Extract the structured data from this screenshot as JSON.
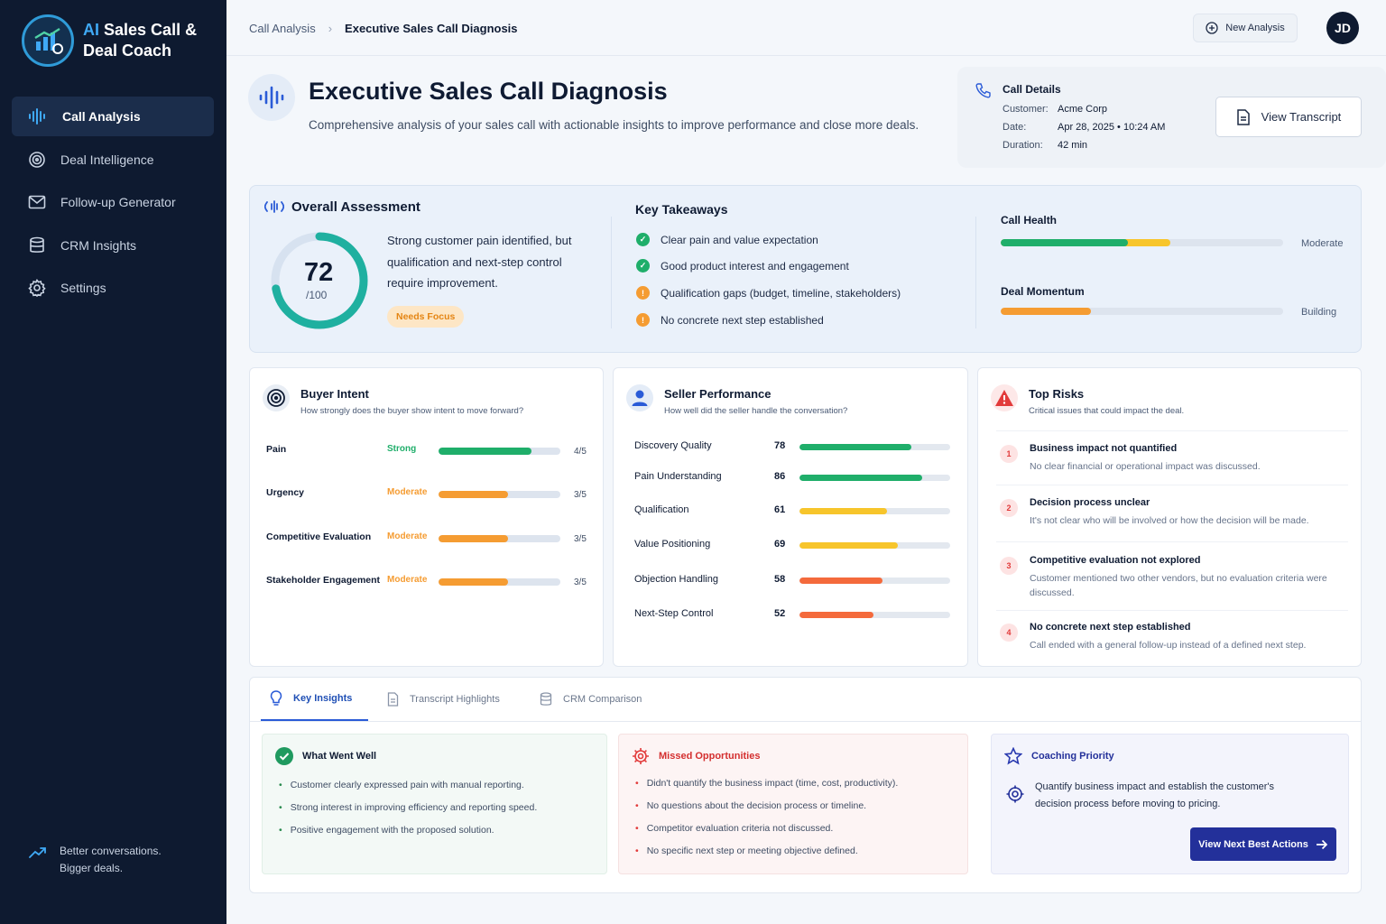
{
  "app": {
    "title_part1": "AI",
    "title_part2": "Sales Call &",
    "title_line2": "Deal Coach"
  },
  "sidebar": {
    "items": [
      {
        "label": "Call Analysis",
        "icon": "waveform-icon",
        "active": true
      },
      {
        "label": "Deal Intelligence",
        "icon": "target-icon"
      },
      {
        "label": "Follow-up Generator",
        "icon": "mail-icon"
      },
      {
        "label": "CRM Insights",
        "icon": "database-icon"
      },
      {
        "label": "Settings",
        "icon": "gear-icon"
      }
    ],
    "tagline_line1": "Better conversations.",
    "tagline_line2": "Bigger deals."
  },
  "header": {
    "breadcrumb": [
      "Call Analysis",
      "Executive Sales Call Diagnosis"
    ],
    "new_analysis_label": "New Analysis",
    "avatar_initials": "JD"
  },
  "page": {
    "title": "Executive Sales Call Diagnosis",
    "subtitle": "Comprehensive analysis of your sales call with actionable insights to improve performance and close more deals."
  },
  "call_details": {
    "title": "Call Details",
    "customer_label": "Customer:",
    "customer": "Acme Corp",
    "date_label": "Date:",
    "date": "Apr 28, 2025 • 10:24 AM",
    "duration_label": "Duration:",
    "duration": "42 min",
    "view_transcript_label": "View Transcript"
  },
  "overall": {
    "title": "Overall Assessment",
    "score": "72",
    "score_value": 72,
    "score_max": "/100",
    "summary": "Strong customer pain identified, but qualification and next-step control require improvement.",
    "badge": "Needs Focus",
    "takeaways_title": "Key Takeaways",
    "takeaways": [
      {
        "text": "Clear pain and value expectation",
        "status": "positive"
      },
      {
        "text": "Good product interest and engagement",
        "status": "positive"
      },
      {
        "text": "Qualification gaps (budget, timeline, stakeholders)",
        "status": "warning"
      },
      {
        "text": "No concrete next step established",
        "status": "warning"
      }
    ],
    "call_health": {
      "label": "Call Health",
      "value": "Moderate",
      "green_fraction": 0.45,
      "yellow_fraction": 0.15
    },
    "deal_momentum": {
      "label": "Deal Momentum",
      "value": "Building",
      "fraction": 0.32
    }
  },
  "buyer_intent": {
    "title": "Buyer Intent",
    "subtitle": "How strongly does the buyer show intent to move forward?",
    "rows": [
      {
        "label": "Pain",
        "level": "Strong",
        "score": "4/5",
        "value": 4,
        "color": "#1fae6a"
      },
      {
        "label": "Urgency",
        "level": "Moderate",
        "score": "3/5",
        "value": 3,
        "color": "#f59c32"
      },
      {
        "label": "Competitive Evaluation",
        "level": "Moderate",
        "score": "3/5",
        "value": 3,
        "color": "#f59c32"
      },
      {
        "label": "Stakeholder Engagement",
        "level": "Moderate",
        "score": "3/5",
        "value": 3,
        "color": "#f59c32"
      }
    ]
  },
  "seller_performance": {
    "title": "Seller Performance",
    "subtitle": "How well did the seller handle the conversation?",
    "rows": [
      {
        "label": "Discovery Quality",
        "score": "78",
        "value": 78,
        "color": "#1fae6a"
      },
      {
        "label": "Pain Understanding",
        "score": "86",
        "value": 86,
        "color": "#1fae6a"
      },
      {
        "label": "Qualification",
        "score": "61",
        "value": 61,
        "color": "#f7c52b"
      },
      {
        "label": "Value Positioning",
        "score": "69",
        "value": 69,
        "color": "#f7c52b"
      },
      {
        "label": "Objection Handling",
        "score": "58",
        "value": 58,
        "color": "#f46a3c"
      },
      {
        "label": "Next-Step Control",
        "score": "52",
        "value": 52,
        "color": "#f46a3c"
      }
    ]
  },
  "top_risks": {
    "title": "Top Risks",
    "subtitle": "Critical issues that could impact the deal.",
    "items": [
      {
        "n": "1",
        "title": "Business impact not quantified",
        "desc": "No clear financial or operational impact was discussed."
      },
      {
        "n": "2",
        "title": "Decision process unclear",
        "desc": "It's not clear who will be involved or how the decision will be made."
      },
      {
        "n": "3",
        "title": "Competitive evaluation not explored",
        "desc": "Customer mentioned two other vendors, but no evaluation criteria were discussed."
      },
      {
        "n": "4",
        "title": "No concrete next step established",
        "desc": "Call ended with a general follow-up instead of a defined next step."
      }
    ]
  },
  "tabs": [
    {
      "label": "Key Insights",
      "active": true
    },
    {
      "label": "Transcript Highlights"
    },
    {
      "label": "CRM Comparison"
    }
  ],
  "insights": {
    "went_well": {
      "title": "What Went Well",
      "items": [
        "Customer clearly expressed pain with manual reporting.",
        "Strong interest in improving efficiency and reporting speed.",
        "Positive engagement with the proposed solution."
      ]
    },
    "missed": {
      "title": "Missed Opportunities",
      "items": [
        "Didn't quantify the business impact (time, cost, productivity).",
        "No questions about the decision process or timeline.",
        "Competitor evaluation criteria not discussed.",
        "No specific next step or meeting objective defined."
      ]
    },
    "coaching": {
      "title": "Coaching Priority",
      "text": "Quantify business impact and establish the customer's decision process before moving to pricing.",
      "button": "View Next Best Actions"
    }
  },
  "colors": {
    "sidebar": "#0e1a30",
    "accent": "#2a5bd7",
    "green": "#1fae6a",
    "orange": "#f59c32",
    "red": "#e23b3b",
    "teal": "#1fb0a0"
  }
}
